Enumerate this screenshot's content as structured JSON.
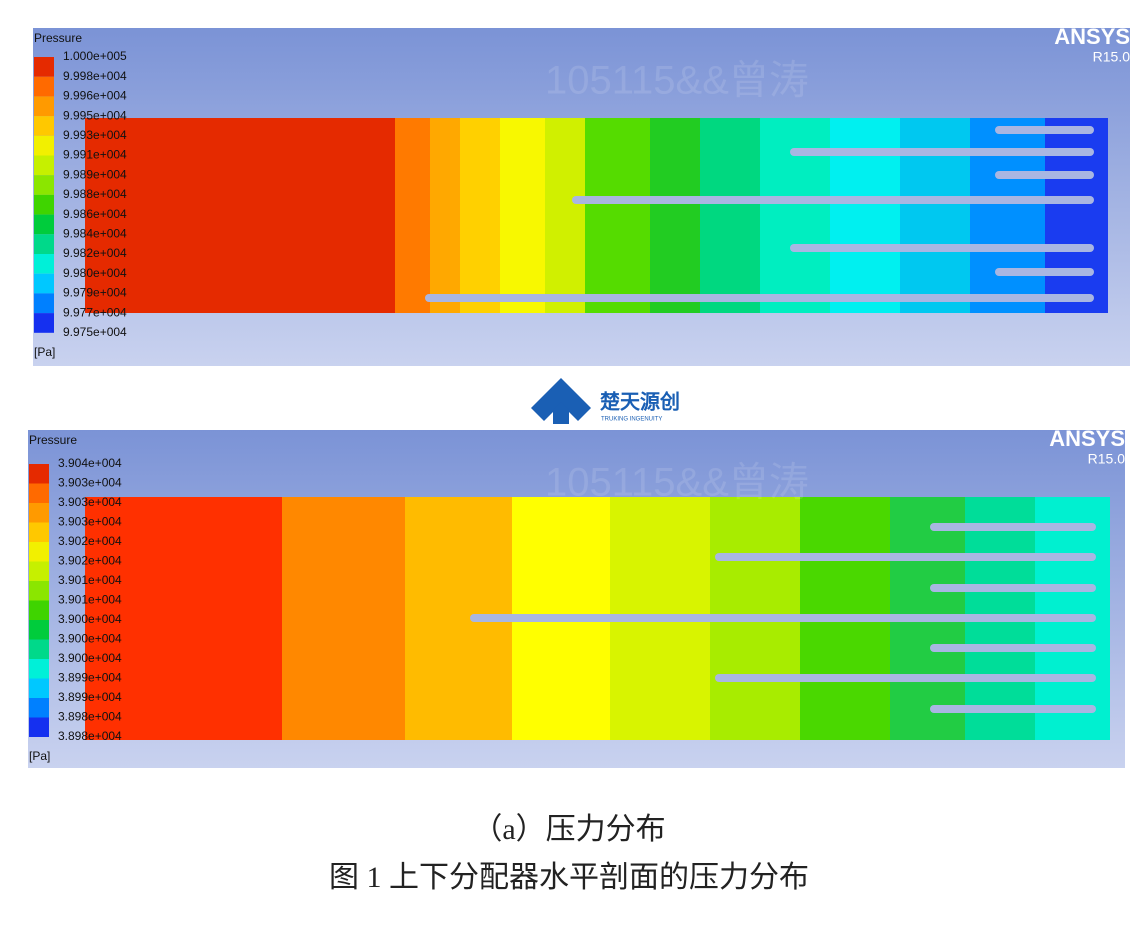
{
  "figure_top": {
    "legend_title": "Pressure",
    "legend_labels": [
      "1.000e+005",
      "9.998e+004",
      "9.996e+004",
      "9.995e+004",
      "9.993e+004",
      "9.991e+004",
      "9.989e+004",
      "9.988e+004",
      "9.986e+004",
      "9.984e+004",
      "9.982e+004",
      "9.980e+004",
      "9.979e+004",
      "9.977e+004",
      "9.975e+004"
    ],
    "unit": "[Pa]",
    "brand": "ANSYS",
    "version": "R15.0"
  },
  "logo": {
    "name": "楚天源创",
    "subtitle": "TRUKING INGENUITY"
  },
  "figure_bottom": {
    "legend_title": "Pressure",
    "legend_labels": [
      "3.904e+004",
      "3.903e+004",
      "3.903e+004",
      "3.903e+004",
      "3.902e+004",
      "3.902e+004",
      "3.901e+004",
      "3.901e+004",
      "3.900e+004",
      "3.900e+004",
      "3.900e+004",
      "3.899e+004",
      "3.899e+004",
      "3.898e+004",
      "3.898e+004"
    ],
    "unit": "[Pa]",
    "brand": "ANSYS",
    "version": "R15.0"
  },
  "subcaption": "（a）压力分布",
  "caption": "图 1 上下分配器水平剖面的压力分布",
  "watermark": "105115&&曾涛"
}
